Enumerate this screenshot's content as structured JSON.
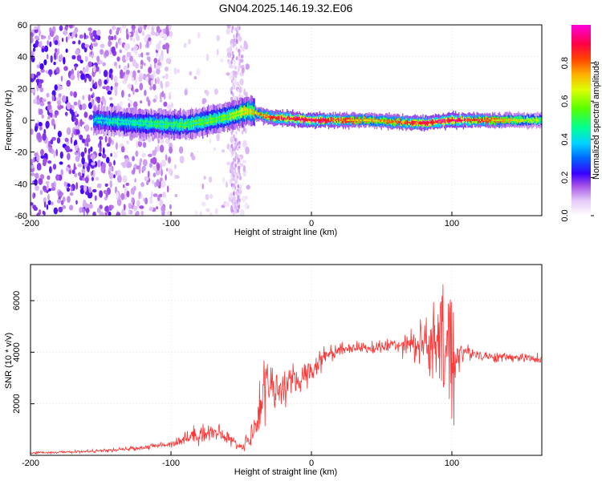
{
  "title": "GN04.2025.146.19.32.E06",
  "chart_data": [
    {
      "type": "heatmap",
      "title": "GN04.2025.146.19.32.E06",
      "xlabel": "Height of straight line (km)",
      "ylabel": "Frequency (Hz)",
      "xlim": [
        -200,
        164
      ],
      "ylim": [
        -60,
        60
      ],
      "xticks": [
        "-200",
        "-100",
        "0",
        "100"
      ],
      "yticks": [
        "-60",
        "-40",
        "-20",
        "0",
        "20",
        "40",
        "60"
      ],
      "colorbar": {
        "label": "Normalized spectral amplitude",
        "ticks": [
          "0.0",
          "0.2",
          "0.4",
          "0.6",
          "0.8"
        ],
        "range": [
          0,
          1
        ],
        "colors": [
          "#ffffff",
          "#d9b8f2",
          "#8a2be2",
          "#2200ff",
          "#00b7ff",
          "#00ff90",
          "#77ff00",
          "#ffee00",
          "#ff8800",
          "#ff0000",
          "#ff0066",
          "#ff00cc"
        ]
      },
      "band": {
        "description_points_x": [
          -150,
          -120,
          -90,
          -60,
          -45,
          -30,
          0,
          40,
          80,
          100,
          164
        ],
        "center_hz": [
          0,
          -2,
          -3,
          2,
          6,
          2,
          0,
          0,
          -2,
          0,
          0
        ],
        "peak_amplitude": [
          0.35,
          0.4,
          0.45,
          0.5,
          0.6,
          0.8,
          0.9,
          0.7,
          0.85,
          0.9,
          0.55
        ]
      },
      "grid": true
    },
    {
      "type": "line",
      "xlabel": "Height of straight line (km)",
      "ylabel": "SNR (10 * v/v)",
      "xlim": [
        -200,
        164
      ],
      "ylim": [
        0,
        7400
      ],
      "xticks": [
        "-200",
        "-100",
        "0",
        "100"
      ],
      "yticks": [
        "2000",
        "4000",
        "6000"
      ],
      "color": "#ff3333",
      "grid": true,
      "series": [
        {
          "x": [
            -200,
            -180,
            -160,
            -140,
            -120,
            -100,
            -90,
            -80,
            -70,
            -60,
            -50,
            -40,
            -35,
            -30,
            -25,
            -20,
            -10,
            0,
            10,
            20,
            30,
            40,
            50,
            60,
            70,
            75,
            80,
            85,
            90,
            95,
            100,
            105,
            110,
            120,
            130,
            140,
            150,
            164
          ],
          "y": [
            100,
            120,
            150,
            200,
            300,
            450,
            650,
            850,
            900,
            700,
            300,
            1000,
            2500,
            3000,
            2400,
            2700,
            2900,
            3300,
            3900,
            4100,
            4200,
            4150,
            4200,
            4300,
            4400,
            4300,
            4350,
            4200,
            4100,
            4300,
            3700,
            4000,
            4000,
            3900,
            3800,
            3800,
            3800,
            3700
          ],
          "noise": [
            40,
            40,
            50,
            60,
            80,
            120,
            250,
            350,
            350,
            250,
            120,
            600,
            1500,
            900,
            700,
            600,
            500,
            450,
            350,
            250,
            200,
            200,
            250,
            300,
            450,
            700,
            1100,
            1400,
            1800,
            2400,
            3200,
            600,
            250,
            200,
            180,
            160,
            150,
            150
          ]
        }
      ]
    }
  ]
}
